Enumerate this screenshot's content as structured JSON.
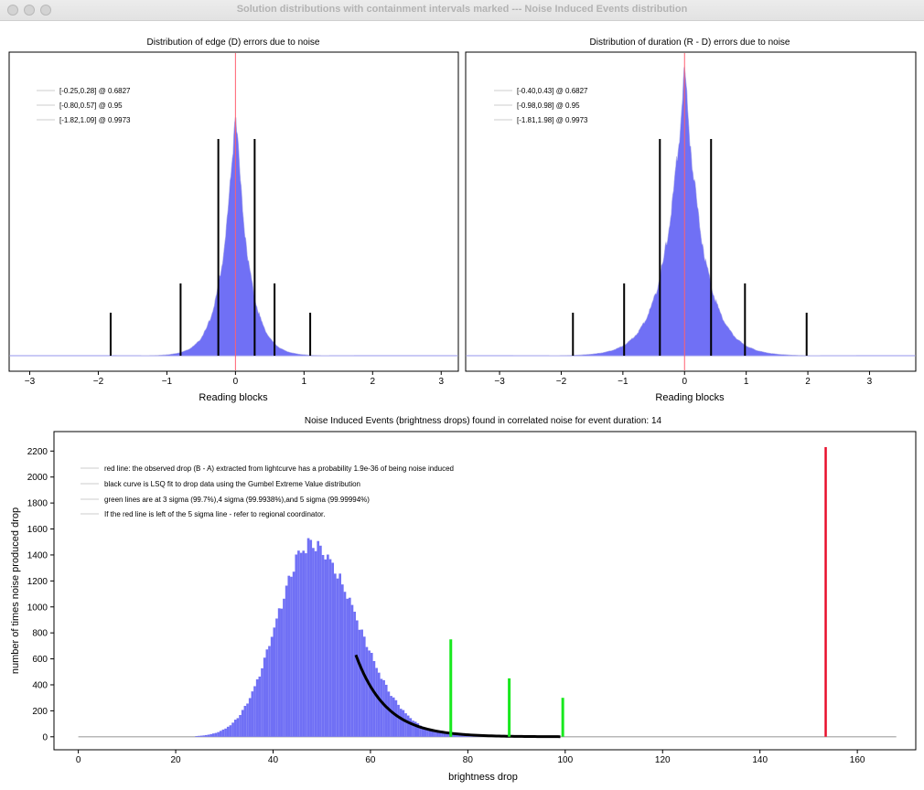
{
  "window": {
    "title": "Solution distributions with containment intervals marked --- Noise Induced Events distribution"
  },
  "colors": {
    "histogram": "#7070f5",
    "observed_drop": "#e8102c",
    "sigma_lines": "#18e81e",
    "fit_curve": "#000000",
    "zero_line": "#ff6070"
  },
  "chart_data": [
    {
      "type": "bar",
      "title": "Distribution of edge (D) errors due to noise",
      "xlabel": "Reading blocks",
      "ylabel": "",
      "xlim": [
        -3.3,
        3.25
      ],
      "xticks": [
        -3,
        -2,
        -1,
        0,
        1,
        2,
        3
      ],
      "distribution": {
        "shape": "laplace-like",
        "center": 0.0,
        "scale": 0.17,
        "peak_relative_height": 1.0
      },
      "legend": [
        {
          "label": "[-0.25,0.28] @ 0.6827"
        },
        {
          "label": "[-0.80,0.57] @ 0.95"
        },
        {
          "label": "[-1.82,1.09] @ 0.9973"
        }
      ],
      "intervals": [
        {
          "low": -0.25,
          "high": 0.28,
          "confidence": 0.6827
        },
        {
          "low": -0.8,
          "high": 0.57,
          "confidence": 0.95
        },
        {
          "low": -1.82,
          "high": 1.09,
          "confidence": 0.9973
        }
      ],
      "marker_x": 0,
      "grid": false
    },
    {
      "type": "bar",
      "title": "Distribution of duration (R - D) errors due to noise",
      "xlabel": "Reading blocks",
      "ylabel": "",
      "xlim": [
        -3.55,
        3.75
      ],
      "xticks": [
        -3,
        -2,
        -1,
        0,
        1,
        2,
        3
      ],
      "distribution": {
        "shape": "laplace-like",
        "center": 0.0,
        "scale": 0.27,
        "peak_relative_height": 1.0
      },
      "legend": [
        {
          "label": "[-0.40,0.43] @ 0.6827"
        },
        {
          "label": "[-0.98,0.98] @ 0.95"
        },
        {
          "label": "[-1.81,1.98] @ 0.9973"
        }
      ],
      "intervals": [
        {
          "low": -0.4,
          "high": 0.43,
          "confidence": 0.6827
        },
        {
          "low": -0.98,
          "high": 0.98,
          "confidence": 0.95
        },
        {
          "low": -1.81,
          "high": 1.98,
          "confidence": 0.9973
        }
      ],
      "marker_x": 0,
      "grid": false
    },
    {
      "type": "bar",
      "title": "Noise Induced Events (brightness drops) found in correlated noise for event duration: 14",
      "xlabel": "brightness drop",
      "ylabel": "number of times noise produced drop",
      "xlim": [
        -5,
        172
      ],
      "ylim": [
        -100,
        2350
      ],
      "xticks": [
        0,
        20,
        40,
        60,
        80,
        100,
        120,
        140,
        160
      ],
      "yticks": [
        0,
        200,
        400,
        600,
        800,
        1000,
        1200,
        1400,
        1600,
        1800,
        2000,
        2200
      ],
      "legend": [
        {
          "label": "red line: the observed drop (B - A) extracted from lightcurve has a probability 1.9e-36 of being noise induced"
        },
        {
          "label": "black curve is LSQ fit to drop data using the Gumbel Extreme Value distribution"
        },
        {
          "label": "green lines are at 3 sigma (99.7%),4 sigma (99.9938%),and 5 sigma (99.99994%)"
        },
        {
          "label": "If the red line is left of the 5 sigma line - refer to regional coordinator."
        }
      ],
      "histogram": {
        "x_start": 24,
        "x_end": 100,
        "bin_width": 0.5,
        "peak_x": 47.5,
        "peak_count": 1480,
        "sigma_left": 7.0,
        "sigma_right": 9.5
      },
      "fit_curve": {
        "x_start": 57,
        "x_end": 99,
        "y_start": 630
      },
      "observed_drop": {
        "x": 153.5,
        "height": 2230
      },
      "sigma_lines": [
        {
          "label": "3 sigma",
          "x": 76.5,
          "height": 750
        },
        {
          "label": "4 sigma",
          "x": 88.5,
          "height": 450
        },
        {
          "label": "5 sigma",
          "x": 99.5,
          "height": 300
        }
      ],
      "baseline_range": [
        0,
        168
      ],
      "grid": false
    }
  ]
}
